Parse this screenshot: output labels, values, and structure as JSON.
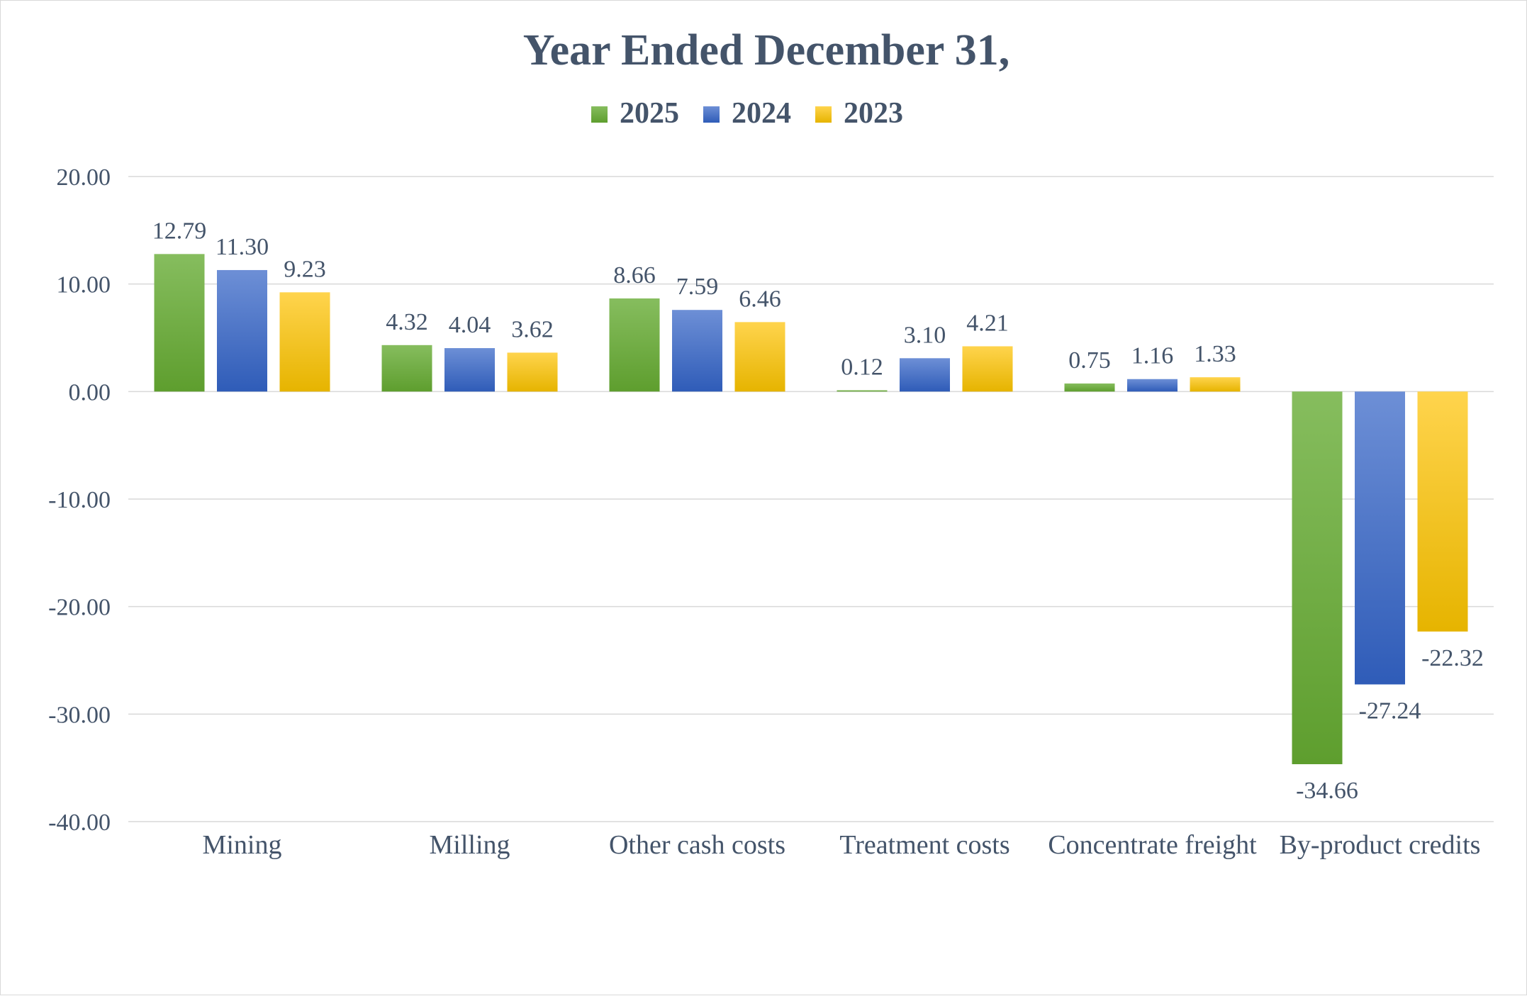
{
  "chart_data": {
    "type": "bar",
    "title": "Year Ended December 31,",
    "categories": [
      "Mining",
      "Milling",
      "Other cash costs",
      "Treatment costs",
      "Concentrate freight",
      "By-product credits"
    ],
    "series": [
      {
        "name": "2025",
        "values": [
          12.79,
          4.32,
          8.66,
          0.12,
          0.75,
          -34.66
        ],
        "labels": [
          "12.79",
          "4.32",
          "8.66",
          "0.12",
          "0.75",
          "-34.66"
        ]
      },
      {
        "name": "2024",
        "values": [
          11.3,
          4.04,
          7.59,
          3.1,
          1.16,
          -27.24
        ],
        "labels": [
          "11.30",
          "4.04",
          "7.59",
          "3.10",
          "1.16",
          "-27.24"
        ]
      },
      {
        "name": "2023",
        "values": [
          9.23,
          3.62,
          6.46,
          4.21,
          1.33,
          -22.32
        ],
        "labels": [
          "9.23",
          "3.62",
          "6.46",
          "4.21",
          "1.33",
          "-22.32"
        ]
      }
    ],
    "yticks": [
      "20.00",
      "10.00",
      "0.00",
      "-10.00",
      "-20.00",
      "-30.00",
      "-40.00"
    ],
    "ylim": [
      -40,
      20
    ],
    "grid": true,
    "legend_position": "top",
    "colors": {
      "2025": [
        "#86bd5e",
        "#5e9e2e"
      ],
      "2024": [
        "#6d8fd6",
        "#2f5cb8"
      ],
      "2023": [
        "#ffd44d",
        "#e6b400"
      ],
      "text": "#44546a",
      "gridline": "#d9d9d9"
    }
  }
}
